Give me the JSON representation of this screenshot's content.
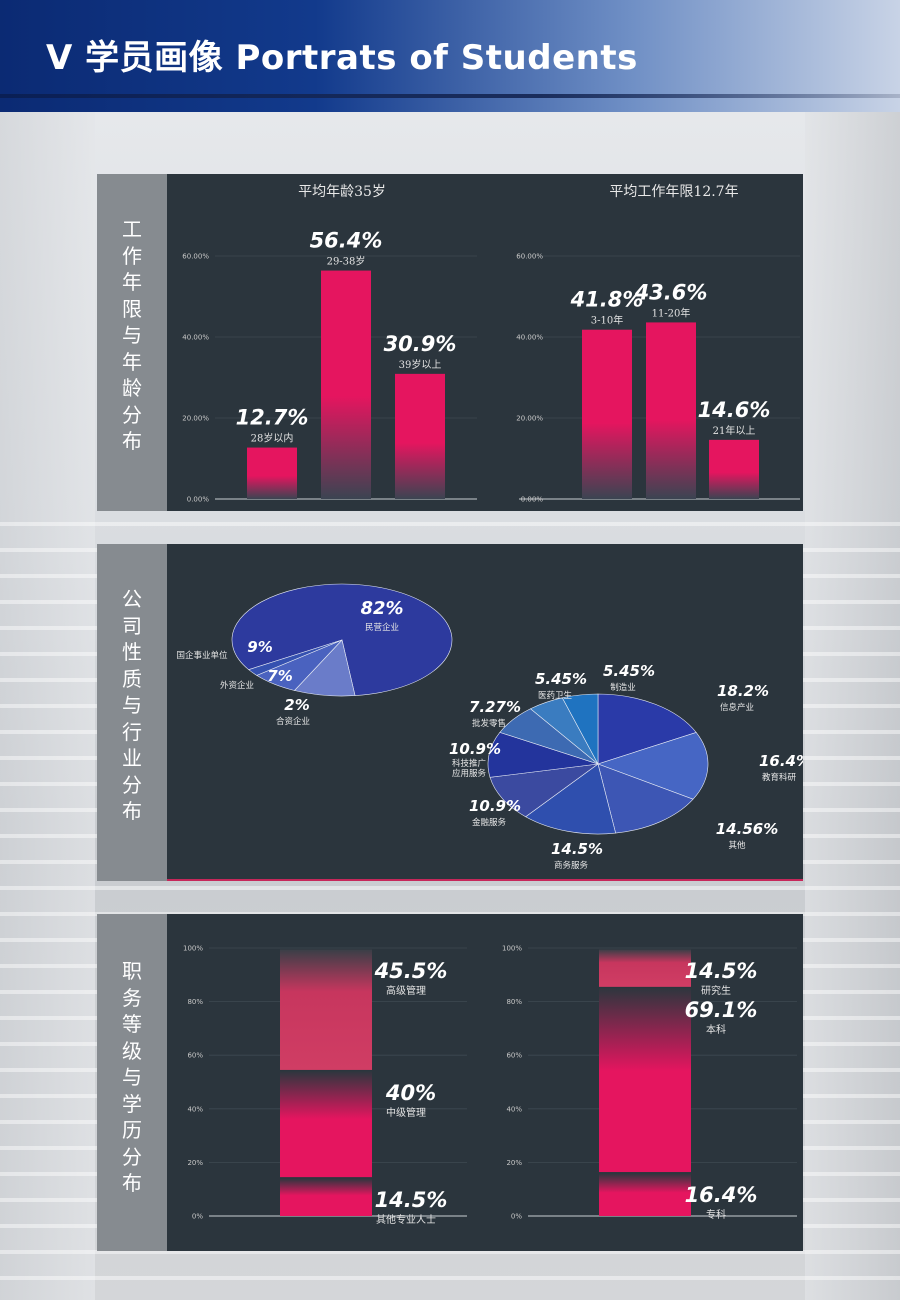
{
  "header": {
    "title": "V 学员画像 Portrats of Students"
  },
  "panels": {
    "p1": {
      "label": [
        "工",
        "作",
        "年",
        "限",
        "与",
        "年",
        "龄",
        "分",
        "布"
      ]
    },
    "p2": {
      "label": [
        "公",
        "司",
        "性",
        "质",
        "与",
        "行",
        "业",
        "分",
        "布"
      ]
    },
    "p3": {
      "label": [
        "职",
        "务",
        "等",
        "级",
        "与",
        "学",
        "历",
        "分",
        "布"
      ]
    }
  },
  "colors": {
    "bar": "#e5155f",
    "panel": "#2b353d",
    "label_bg": "#868b90",
    "pie": [
      "#2a3aa8",
      "#4666c4",
      "#3d56b4",
      "#2f4fae",
      "#3b4aa0",
      "#23349c",
      "#3d6ab2",
      "#3a7cc0",
      "#1f73c0"
    ]
  },
  "chart_data": [
    {
      "type": "bar",
      "title": "平均年龄35岁",
      "categories": [
        "28岁以内",
        "29-38岁",
        "39岁以上"
      ],
      "values": [
        12.7,
        56.4,
        30.9
      ],
      "value_labels": [
        "12.7%",
        "56.4%",
        "30.9%"
      ],
      "ylim": [
        0,
        60
      ],
      "yticks": [
        "0.00%",
        "20.00%",
        "40.00%",
        "60.00%"
      ],
      "grid": true
    },
    {
      "type": "bar",
      "title": "平均工作年限12.7年",
      "categories": [
        "3-10年",
        "11-20年",
        "21年以上"
      ],
      "values": [
        41.8,
        43.6,
        14.6
      ],
      "value_labels": [
        "41.8%",
        "43.6%",
        "14.6%"
      ],
      "ylim": [
        0,
        60
      ],
      "yticks": [
        "0.00%",
        "20.00%",
        "40.00%",
        "60.00%"
      ],
      "grid": true
    },
    {
      "type": "pie",
      "labels": [
        "民营企业",
        "国企事业单位",
        "外资企业",
        "合资企业"
      ],
      "values": [
        82,
        9,
        7,
        2
      ],
      "value_labels": [
        "82%",
        "9%",
        "7%",
        "2%"
      ]
    },
    {
      "type": "pie",
      "labels": [
        "信息产业",
        "教育科研",
        "其他",
        "商务服务",
        "金融服务",
        "科技推广应用服务",
        "批发零售",
        "医药卫生",
        "制造业"
      ],
      "label_lines": [
        [
          "信息产业"
        ],
        [
          "教育科研"
        ],
        [
          "其他"
        ],
        [
          "商务服务"
        ],
        [
          "金融服务"
        ],
        [
          "科技推广",
          "应用服务"
        ],
        [
          "批发零售"
        ],
        [
          "医药卫生"
        ],
        [
          "制造业"
        ]
      ],
      "values": [
        18.2,
        16.4,
        14.56,
        14.5,
        10.9,
        10.9,
        7.27,
        5.45,
        5.45
      ],
      "value_labels": [
        "18.2%",
        "16.4%",
        "14.56%",
        "14.5%",
        "10.9%",
        "10.9%",
        "7.27%",
        "5.45%",
        "5.45%"
      ]
    },
    {
      "type": "bar",
      "stacked": true,
      "categories": [
        "其他专业人士",
        "中级管理",
        "高级管理"
      ],
      "values": [
        14.5,
        40,
        45.5
      ],
      "value_labels": [
        "14.5%",
        "40%",
        "45.5%"
      ],
      "ylim": [
        0,
        100
      ],
      "yticks": [
        "0%",
        "20%",
        "40%",
        "60%",
        "80%",
        "100%"
      ],
      "grid": true
    },
    {
      "type": "bar",
      "stacked": true,
      "categories": [
        "专科",
        "本科",
        "研究生"
      ],
      "values": [
        16.4,
        69.1,
        14.5
      ],
      "value_labels": [
        "16.4%",
        "69.1%",
        "14.5%"
      ],
      "ylim": [
        0,
        100
      ],
      "yticks": [
        "0%",
        "20%",
        "40%",
        "60%",
        "80%",
        "100%"
      ],
      "grid": true
    }
  ]
}
